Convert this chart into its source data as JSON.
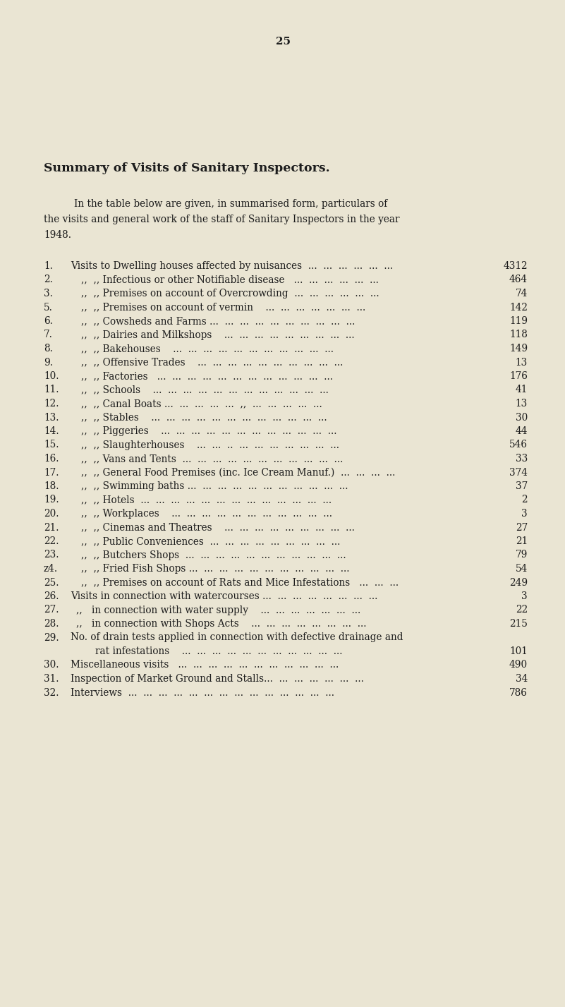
{
  "page_number": "25",
  "bg_color": "#EAE5D3",
  "title": "Summary of Visits of Sanitary Inspectors.",
  "intro_line1": "In the table below are given, in summarised form, particulars of",
  "intro_line2": "the visits and general work of the staff of Sanitary Inspectors in the year",
  "intro_line3": "1948.",
  "rows": [
    {
      "num": "1.",
      "text": "Visits to Dwelling houses affected by nuisances  ...  ...  ...  ...  ...  ...",
      "value": "4312",
      "type": "normal"
    },
    {
      "num": "2.",
      "text": ",,  ,, Infectious or other Notifiable disease   ...  ...  ...  ...  ...  ...",
      "value": "464",
      "type": "indent"
    },
    {
      "num": "3.",
      "text": ",,  ,, Premises on account of Overcrowding  ...  ...  ...  ...  ...  ...",
      "value": "74",
      "type": "indent"
    },
    {
      "num": "5.",
      "text": ",,  ,, Premises on account of vermin    ...  ...  ...  ...  ...  ...  ...",
      "value": "142",
      "type": "indent"
    },
    {
      "num": "6.",
      "text": ",,  ,, Cowsheds and Farms ...  ...  ...  ...  ...  ...  ...  ...  ...  ...",
      "value": "119",
      "type": "indent"
    },
    {
      "num": "7.",
      "text": ",,  ,, Dairies and Milkshops    ...  ...  ...  ...  ...  ...  ...  ...  ...",
      "value": "118",
      "type": "indent"
    },
    {
      "num": "8.",
      "text": ",,  ,, Bakehouses    ...  ...  ...  ...  ...  ...  ...  ...  ...  ...  ...",
      "value": "149",
      "type": "indent"
    },
    {
      "num": "9.",
      "text": ",,  ,, Offensive Trades    ...  ...  ...  ...  ...  ...  ...  ...  ...  ...",
      "value": "13",
      "type": "indent"
    },
    {
      "num": "10.",
      "text": ",,  ,, Factories   ...  ...  ...  ...  ...  ...  ...  ...  ...  ...  ...  ...",
      "value": "176",
      "type": "indent"
    },
    {
      "num": "11.",
      "text": ",,  ,, Schools    ...  ...  ...  ...  ...  ...  ...  ...  ...  ...  ...  ...",
      "value": "41",
      "type": "indent"
    },
    {
      "num": "12.",
      "text": ",,  ,, Canal Boats ...  ...  ...  ...  ...  ,,  ...  ...  ...  ...  ...",
      "value": "13",
      "type": "indent"
    },
    {
      "num": "13.",
      "text": ",,  ,, Stables    ...  ...  ...  ...  ...  ...  ...  ...  ...  ...  ...  ...",
      "value": "30",
      "type": "indent"
    },
    {
      "num": "14.",
      "text": ",,  ,, Piggeries    ...  ...  ...  ...  ...  ...  ...  ...  ...  ...  ...  ...",
      "value": "44",
      "type": "indent"
    },
    {
      "num": "15.",
      "text": ",,  ,, Slaughterhouses    ...  ...  ..  ...  ...  ...  ...  ...  ...  ...",
      "value": "546",
      "type": "indent"
    },
    {
      "num": "16.",
      "text": ",,  ,, Vans and Tents  ...  ...  ...  ...  ...  ...  ...  ...  ...  ...  ...",
      "value": "33",
      "type": "indent"
    },
    {
      "num": "17.",
      "text": ",,  ,, General Food Premises (inc. Ice Cream Manuf.)  ...  ...  ...  ...",
      "value": "374",
      "type": "indent"
    },
    {
      "num": "18.",
      "text": ",,  ,, Swimming baths ...  ...  ...  ...  ...  ...  ...  ...  ...  ...  ...",
      "value": "37",
      "type": "indent"
    },
    {
      "num": "19.",
      "text": ",,  ,, Hotels  ...  ...  ...  ...  ...  ...  ...  ...  ...  ...  ...  ...  ...",
      "value": "2",
      "type": "indent"
    },
    {
      "num": "20.",
      "text": ",,  ,, Workplaces    ...  ...  ...  ...  ...  ...  ...  ...  ...  ...  ...",
      "value": "3",
      "type": "indent"
    },
    {
      "num": "21.",
      "text": ",,  ,, Cinemas and Theatres    ...  ...  ...  ...  ...  ...  ...  ...  ...",
      "value": "27",
      "type": "indent"
    },
    {
      "num": "22.",
      "text": ",,  ,, Public Conveniences  ...  ...  ...  ...  ...  ...  ...  ...  ...",
      "value": "21",
      "type": "indent"
    },
    {
      "num": "23.",
      "text": ",,  ,, Butchers Shops  ...  ...  ...  ...  ...  ...  ...  ...  ...  ...  ...",
      "value": "79",
      "type": "indent"
    },
    {
      "num": "z4.",
      "text": ",,  ,, Fried Fish Shops ...  ...  ...  ...  ...  ...  ...  ...  ...  ...  ...",
      "value": "54",
      "type": "indent"
    },
    {
      "num": "25.",
      "text": ",,  ,, Premises on account of Rats and Mice Infestations   ...  ...  ...",
      "value": "249",
      "type": "indent"
    },
    {
      "num": "26.",
      "text": "Visits in connection with watercourses ...  ...  ...  ...  ...  ...  ...  ...",
      "value": "3",
      "type": "normal"
    },
    {
      "num": "27.",
      "text": ",,   in connection with water supply    ...  ...  ...  ...  ...  ...  ...",
      "value": "22",
      "type": "indent27"
    },
    {
      "num": "28.",
      "text": ",,   in connection with Shops Acts    ...  ...  ...  ...  ...  ...  ...  ...",
      "value": "215",
      "type": "indent27"
    },
    {
      "num": "29.",
      "text": "No. of drain tests applied in connection with defective drainage and",
      "value": "",
      "type": "normal"
    },
    {
      "num": "",
      "text": "        rat infestations    ...  ...  ...  ...  ...  ...  ...  ...  ...  ...  ...",
      "value": "101",
      "type": "continuation"
    },
    {
      "num": "30.",
      "text": "Miscellaneous visits   ...  ...  ...  ...  ...  ...  ...  ...  ...  ...  ...",
      "value": "490",
      "type": "normal"
    },
    {
      "num": "31.",
      "text": "Inspection of Market Ground and Stalls...  ...  ...  ...  ...  ...  ...",
      "value": "34",
      "type": "normal"
    },
    {
      "num": "32.",
      "text": "Interviews  ...  ...  ...  ...  ...  ...  ...  ...  ...  ...  ...  ...  ...  ...",
      "value": "786",
      "type": "normal"
    }
  ],
  "text_color": "#1c1c1c",
  "font_size_title": 12.5,
  "font_size_body": 9.8,
  "font_size_page": 11
}
